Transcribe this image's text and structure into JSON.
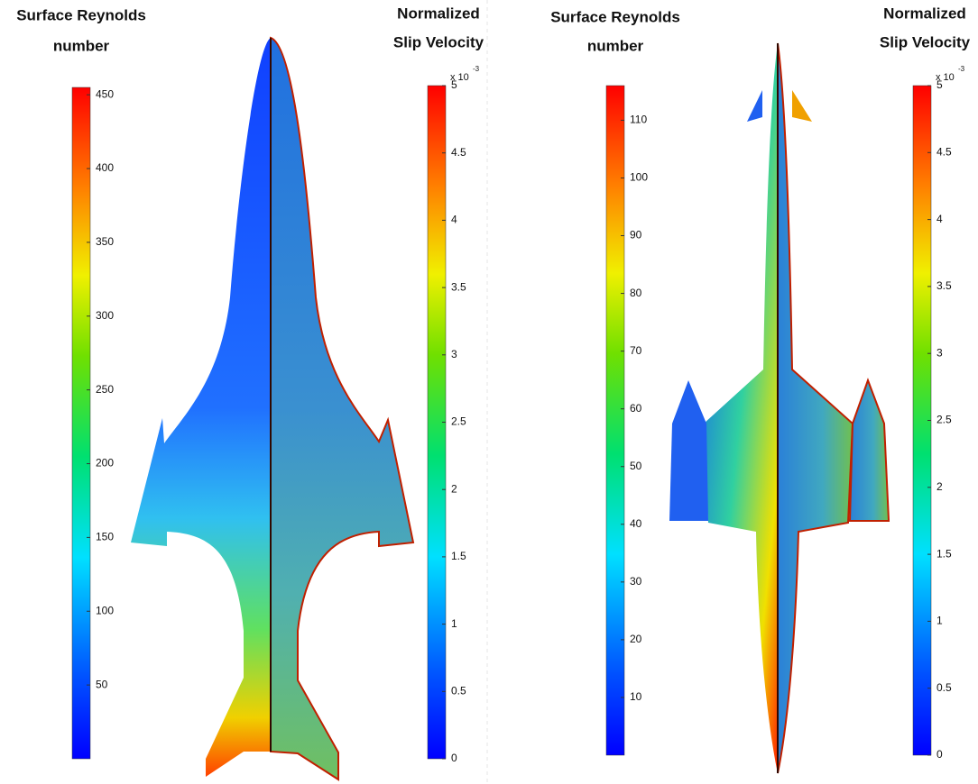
{
  "panels": [
    {
      "colorbars": [
        {
          "title": [
            "Surface Reynolds",
            "number"
          ],
          "lim": [
            0,
            455
          ],
          "ticks": [
            50,
            100,
            150,
            200,
            250,
            300,
            350,
            400,
            450
          ]
        },
        {
          "title": [
            "Normalized",
            "Slip Velocity"
          ],
          "multiplier": "x 10",
          "exponent": "-3",
          "lim": [
            0,
            5
          ],
          "ticks": [
            0,
            0.5,
            1,
            1.5,
            2,
            2.5,
            3,
            3.5,
            4,
            4.5,
            5
          ]
        }
      ]
    },
    {
      "colorbars": [
        {
          "title": [
            "Surface Reynolds",
            "number"
          ],
          "lim": [
            0,
            116
          ],
          "ticks": [
            10,
            20,
            30,
            40,
            50,
            60,
            70,
            80,
            90,
            100,
            110
          ]
        },
        {
          "title": [
            "Normalized",
            "Slip Velocity"
          ],
          "multiplier": "x 10",
          "exponent": "-3",
          "lim": [
            0,
            5
          ],
          "ticks": [
            0,
            0.5,
            1,
            1.5,
            2,
            2.5,
            3,
            3.5,
            4,
            4.5,
            5
          ]
        }
      ]
    }
  ]
}
